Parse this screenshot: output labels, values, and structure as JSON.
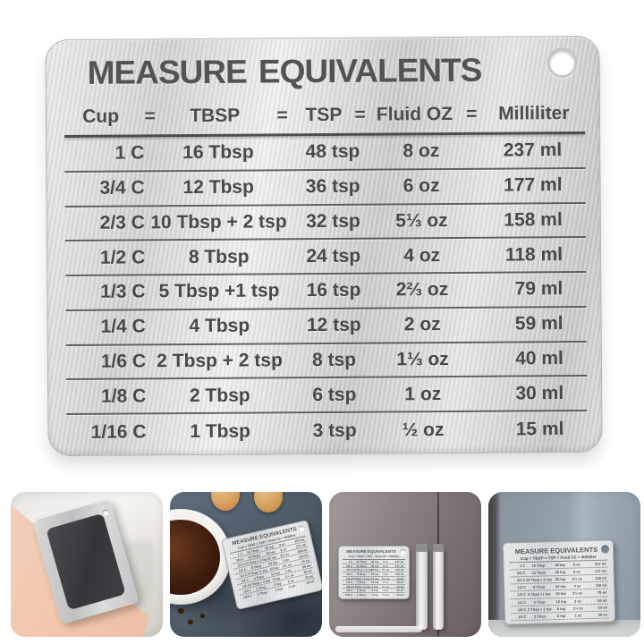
{
  "chart_data": {
    "type": "table",
    "title": "MEASURE EQUIVALENTS",
    "columns": [
      "Cup",
      "TBSP",
      "TSP",
      "Fluid OZ",
      "Milliliter"
    ],
    "rows": [
      [
        "1 C",
        "16 Tbsp",
        "48 tsp",
        "8 oz",
        "237 ml"
      ],
      [
        "3/4 C",
        "12 Tbsp",
        "36 tsp",
        "6 oz",
        "177 ml"
      ],
      [
        "2/3 C",
        "10 Tbsp + 2 tsp",
        "32 tsp",
        "5⅓ oz",
        "158 ml"
      ],
      [
        "1/2 C",
        "8 Tbsp",
        "24 tsp",
        "4 oz",
        "118 ml"
      ],
      [
        "1/3 C",
        "5 Tbsp +1 tsp",
        "16 tsp",
        "2⅔ oz",
        "79 ml"
      ],
      [
        "1/4 C",
        "4 Tbsp",
        "12 tsp",
        "2 oz",
        "59 ml"
      ],
      [
        "1/6 C",
        "2 Tbsp + 2 tsp",
        "8 tsp",
        "1⅓ oz",
        "40 ml"
      ],
      [
        "1/8 C",
        "2 Tbsp",
        "6 tsp",
        "1 oz",
        "30 ml"
      ],
      [
        "1/16 C",
        "1 Tbsp",
        "3 tsp",
        "½ oz",
        "15 ml"
      ]
    ]
  },
  "plate_header": {
    "cup": "Cup",
    "eq": "=",
    "tbsp": "TBSP",
    "tsp": "TSP",
    "floz": "Fluid OZ",
    "ml": "Milliliter"
  },
  "thumbnails": [
    {
      "name": "magnet-back-view"
    },
    {
      "name": "baking-scene-with-chart"
    },
    {
      "name": "chart-on-fridge-door"
    },
    {
      "name": "chart-on-fridge-closeup"
    }
  ],
  "colors": {
    "engraved_text": "#4a4a4a",
    "steel_light": "#ececec",
    "steel_dark": "#c9c9c9",
    "magnet_black": "#3a3c3f",
    "peach_backdrop": "#f1c9b1",
    "cloth_slate": "#4e5a67",
    "fridge_taupe": "#857c7f",
    "fridge_blue_grey": "#93a0ab"
  }
}
